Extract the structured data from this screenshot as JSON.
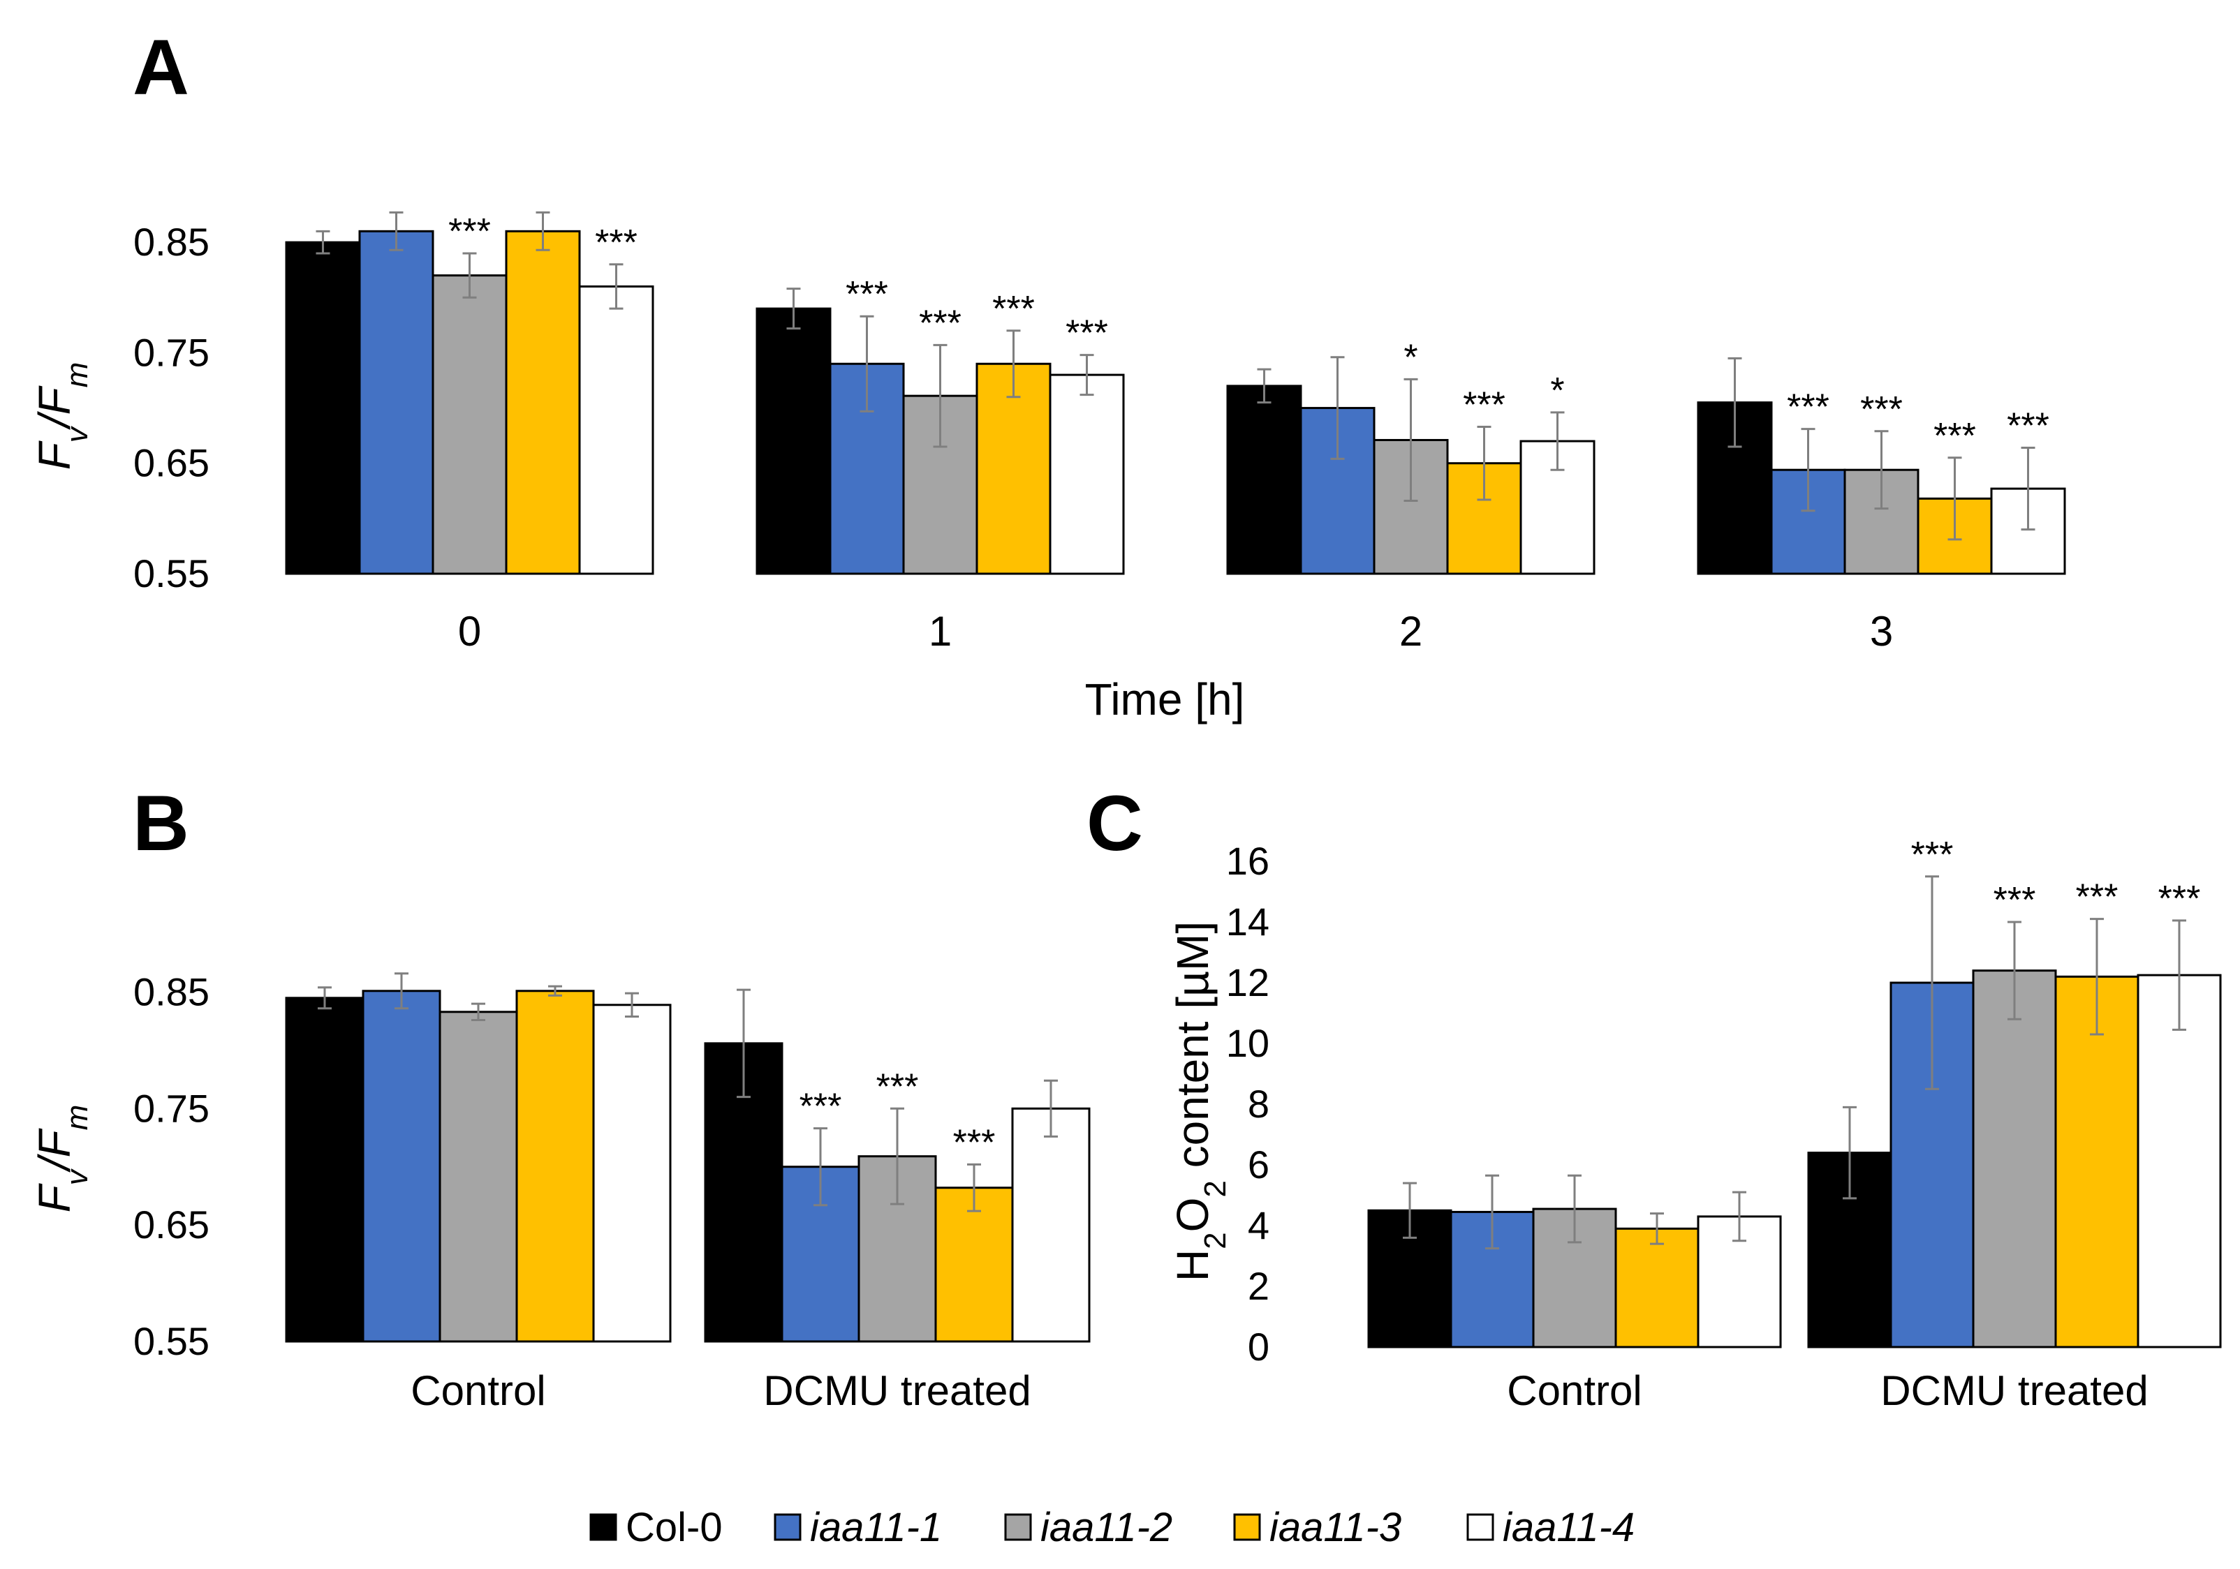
{
  "figure": {
    "legend": [
      {
        "label": "Col-0",
        "italic": false,
        "color": "#000000"
      },
      {
        "label": "iaa11-1",
        "italic": true,
        "color": "#4472C4"
      },
      {
        "label": "iaa11-2",
        "italic": true,
        "color": "#A5A5A5"
      },
      {
        "label": "iaa11-3",
        "italic": true,
        "color": "#FFC000"
      },
      {
        "label": "iaa11-4",
        "italic": true,
        "color": "#FFFFFF"
      }
    ]
  },
  "chart_data": [
    {
      "panel": "A",
      "type": "bar",
      "xlabel": "Time [h]",
      "ylabel": "Fv/Fm",
      "ylim": [
        0.55,
        0.9
      ],
      "yticks": [
        "0.55",
        "0.65",
        "0.75",
        "0.85"
      ],
      "categories": [
        "0",
        "1",
        "2",
        "3"
      ],
      "series": [
        {
          "name": "Col-0",
          "values": [
            0.85,
            0.79,
            0.72,
            0.705
          ],
          "errors": [
            0.01,
            0.018,
            0.015,
            0.04
          ],
          "sig": [
            "",
            "",
            "",
            ""
          ]
        },
        {
          "name": "iaa11-1",
          "values": [
            0.86,
            0.74,
            0.7,
            0.644
          ],
          "errors": [
            0.017,
            0.043,
            0.046,
            0.037
          ],
          "sig": [
            "",
            "***",
            "",
            "***"
          ]
        },
        {
          "name": "iaa11-2",
          "values": [
            0.82,
            0.711,
            0.671,
            0.644
          ],
          "errors": [
            0.02,
            0.046,
            0.055,
            0.035
          ],
          "sig": [
            "***",
            "***",
            "*",
            "***"
          ]
        },
        {
          "name": "iaa11-3",
          "values": [
            0.86,
            0.74,
            0.65,
            0.618
          ],
          "errors": [
            0.017,
            0.03,
            0.033,
            0.037
          ],
          "sig": [
            "",
            "***",
            "***",
            "***"
          ]
        },
        {
          "name": "iaa11-4",
          "values": [
            0.81,
            0.73,
            0.67,
            0.627
          ],
          "errors": [
            0.02,
            0.018,
            0.026,
            0.037
          ],
          "sig": [
            "***",
            "***",
            "*",
            "***"
          ]
        }
      ]
    },
    {
      "panel": "B",
      "type": "bar",
      "xlabel": "",
      "ylabel": "Fv/Fm",
      "ylim": [
        0.55,
        0.9
      ],
      "yticks": [
        "0.55",
        "0.65",
        "0.75",
        "0.85"
      ],
      "categories": [
        "Control",
        "DCMU treated"
      ],
      "series": [
        {
          "name": "Col-0",
          "values": [
            0.845,
            0.806
          ],
          "errors": [
            0.009,
            0.046
          ],
          "sig": [
            "",
            ""
          ]
        },
        {
          "name": "iaa11-1",
          "values": [
            0.851,
            0.7
          ],
          "errors": [
            0.015,
            0.033
          ],
          "sig": [
            "",
            "***"
          ]
        },
        {
          "name": "iaa11-2",
          "values": [
            0.833,
            0.709
          ],
          "errors": [
            0.007,
            0.041
          ],
          "sig": [
            "",
            "***"
          ]
        },
        {
          "name": "iaa11-3",
          "values": [
            0.851,
            0.682
          ],
          "errors": [
            0.004,
            0.02
          ],
          "sig": [
            "",
            "***"
          ]
        },
        {
          "name": "iaa11-4",
          "values": [
            0.839,
            0.75
          ],
          "errors": [
            0.01,
            0.024
          ],
          "sig": [
            "",
            ""
          ]
        }
      ]
    },
    {
      "panel": "C",
      "type": "bar",
      "xlabel": "",
      "ylabel": "H2O2 content [µM]",
      "ylim": [
        0,
        16
      ],
      "yticks": [
        "0",
        "2",
        "4",
        "6",
        "8",
        "10",
        "12",
        "14",
        "16"
      ],
      "categories": [
        "Control",
        "DCMU treated"
      ],
      "series": [
        {
          "name": "Col-0",
          "values": [
            4.5,
            6.4
          ],
          "errors": [
            0.9,
            1.5
          ],
          "sig": [
            "",
            ""
          ]
        },
        {
          "name": "iaa11-1",
          "values": [
            4.45,
            12.0
          ],
          "errors": [
            1.2,
            3.5
          ],
          "sig": [
            "",
            "***"
          ]
        },
        {
          "name": "iaa11-2",
          "values": [
            4.55,
            12.4
          ],
          "errors": [
            1.1,
            1.6
          ],
          "sig": [
            "",
            "***"
          ]
        },
        {
          "name": "iaa11-3",
          "values": [
            3.9,
            12.2
          ],
          "errors": [
            0.5,
            1.9
          ],
          "sig": [
            "",
            "***"
          ]
        },
        {
          "name": "iaa11-4",
          "values": [
            4.3,
            12.25
          ],
          "errors": [
            0.8,
            1.8
          ],
          "sig": [
            "",
            "***"
          ]
        }
      ]
    }
  ]
}
